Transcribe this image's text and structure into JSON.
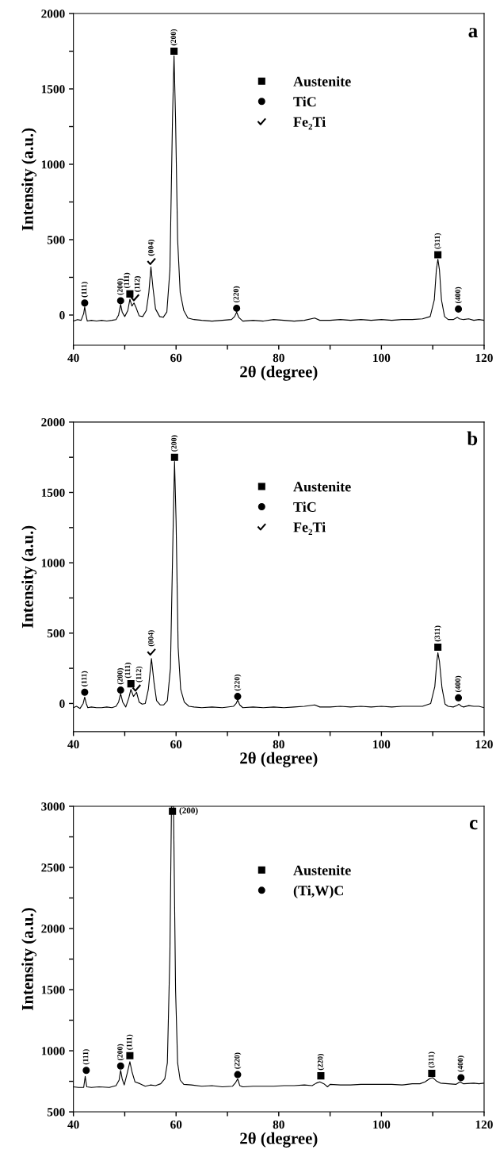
{
  "chart_data": [
    {
      "type": "line",
      "ylabel": "Intensity (a.u.)",
      "xlabel": "2θ (degree)",
      "xlim": [
        40,
        120
      ],
      "ylim": [
        -200,
        2000
      ],
      "xticks": [
        40,
        {
          "value": 50,
          "label": null
        },
        60,
        {
          "value": 70,
          "label": null
        },
        80,
        {
          "value": 90,
          "label": null
        },
        100,
        {
          "value": 110,
          "label": null
        },
        120
      ],
      "yticks": [
        0,
        {
          "value": 250,
          "label": null
        },
        500,
        {
          "value": 750,
          "label": null
        },
        1000,
        {
          "value": 1250,
          "label": null
        },
        1500,
        {
          "value": 1750,
          "label": null
        },
        2000
      ],
      "grid": false,
      "legend": "top",
      "series": [
        {
          "color": "#000000",
          "x": [
            40,
            40.8,
            41.5,
            42.0,
            42.2,
            42.4,
            42.7,
            43.5,
            44.5,
            45.5,
            46.5,
            47.5,
            48.3,
            48.8,
            49.2,
            49.5,
            50.0,
            50.6,
            51.0,
            51.4,
            51.8,
            52.2,
            52.8,
            53.5,
            54.2,
            54.7,
            55.1,
            55.5,
            56.0,
            56.8,
            57.5,
            58.2,
            58.8,
            59.3,
            59.6,
            59.9,
            60.3,
            60.8,
            61.5,
            62.3,
            63.5,
            65,
            67,
            69,
            70.8,
            71.4,
            71.8,
            72.2,
            73,
            75,
            77,
            79,
            81,
            83,
            85,
            87,
            88,
            90,
            92,
            94,
            96,
            98,
            100,
            102,
            104,
            106,
            108,
            109.5,
            110.3,
            110.7,
            111.0,
            111.3,
            111.7,
            112.3,
            113,
            114,
            114.8,
            115.2,
            116,
            117,
            118,
            119,
            120
          ],
          "values": [
            -40,
            -30,
            -35,
            10,
            55,
            10,
            -40,
            -35,
            -40,
            -35,
            -40,
            -35,
            -30,
            0,
            70,
            20,
            -10,
            30,
            105,
            60,
            80,
            50,
            -5,
            -10,
            30,
            150,
            320,
            180,
            40,
            -10,
            -15,
            20,
            300,
            1300,
            1720,
            1300,
            500,
            150,
            30,
            -20,
            -30,
            -35,
            -40,
            -35,
            -30,
            -10,
            20,
            -15,
            -40,
            -35,
            -40,
            -30,
            -35,
            -40,
            -35,
            -20,
            -35,
            -35,
            -30,
            -35,
            -30,
            -35,
            -30,
            -35,
            -30,
            -30,
            -25,
            -10,
            100,
            300,
            370,
            300,
            100,
            -10,
            -30,
            -30,
            -15,
            -25,
            -30,
            -25,
            -35,
            -30,
            -35
          ]
        },
        {
          "type": "scatter",
          "name": "Austenite",
          "color": "#000000",
          "marker": "square",
          "x": [
            51,
            59.6,
            111
          ],
          "values": [
            140,
            1750,
            400
          ]
        },
        {
          "type": "scatter",
          "name": "TiC",
          "color": "#000000",
          "marker": "circle",
          "x": [
            42.2,
            49.2,
            71.8,
            115
          ],
          "values": [
            80,
            95,
            45,
            40
          ]
        },
        {
          "type": "scatter",
          "name": "Fe₂Ti",
          "color": "#000000",
          "marker": "cross",
          "x": [
            52,
            55.2
          ],
          "values": [
            115,
            355
          ]
        }
      ],
      "annotations": [
        "a",
        {
          "text": "(111)",
          "x": 42.2,
          "y": 80
        },
        {
          "text": "(200)",
          "x": 49.2,
          "y": 95
        },
        {
          "text": "(111)",
          "x": 51,
          "y": 140
        },
        {
          "text": "(112)",
          "x": 52,
          "y": 115
        },
        {
          "text": "(004)",
          "x": 55.2,
          "y": 355
        },
        {
          "text": "(200)",
          "x": 59.6,
          "y": 1750
        },
        {
          "text": "(220)",
          "x": 71.8,
          "y": 45
        },
        {
          "text": "(311)",
          "x": 111,
          "y": 400
        },
        {
          "text": "(400)",
          "x": 115,
          "y": 40
        }
      ]
    },
    {
      "type": "line",
      "ylabel": "Intensity (a.u.)",
      "xlabel": "2θ (degree)",
      "xlim": [
        40,
        120
      ],
      "ylim": [
        -200,
        2000
      ],
      "xticks": [
        40,
        {
          "value": 50,
          "label": null
        },
        60,
        {
          "value": 70,
          "label": null
        },
        80,
        {
          "value": 90,
          "label": null
        },
        100,
        {
          "value": 110,
          "label": null
        },
        120
      ],
      "yticks": [
        0,
        {
          "value": 250,
          "label": null
        },
        500,
        {
          "value": 750,
          "label": null
        },
        1000,
        {
          "value": 1250,
          "label": null
        },
        1500,
        {
          "value": 1750,
          "label": null
        },
        2000
      ],
      "grid": false,
      "legend": "top",
      "series": [
        {
          "color": "#000000",
          "x": [
            40,
            40.6,
            41.3,
            41.9,
            42.2,
            42.5,
            42.8,
            43.5,
            44.5,
            45.5,
            46.5,
            47.5,
            48.3,
            48.8,
            49.2,
            49.6,
            50.2,
            50.8,
            51.2,
            51.7,
            52.3,
            52.8,
            53.4,
            54.0,
            54.6,
            55.2,
            55.7,
            56.2,
            56.9,
            57.6,
            58.3,
            58.9,
            59.4,
            59.7,
            60.0,
            60.4,
            60.9,
            61.6,
            62.5,
            63.5,
            65,
            67,
            69,
            71.2,
            71.7,
            72.0,
            72.4,
            73,
            75,
            77,
            79,
            81,
            83,
            85,
            87,
            88,
            90,
            92,
            94,
            96,
            98,
            100,
            102,
            104,
            106,
            108,
            109.6,
            110.4,
            110.8,
            111.0,
            111.3,
            111.8,
            112.4,
            113,
            114,
            114.7,
            115.1,
            115.6,
            116,
            117,
            118,
            119,
            120
          ],
          "values": [
            -30,
            -20,
            -35,
            0,
            45,
            0,
            -30,
            -25,
            -30,
            -30,
            -25,
            -30,
            -20,
            10,
            70,
            10,
            -25,
            40,
            100,
            50,
            80,
            10,
            -5,
            0,
            100,
            320,
            150,
            20,
            -10,
            -10,
            20,
            250,
            1200,
            1720,
            1300,
            400,
            100,
            10,
            -20,
            -25,
            -30,
            -25,
            -30,
            -20,
            0,
            25,
            -10,
            -30,
            -25,
            -30,
            -25,
            -30,
            -25,
            -20,
            -10,
            -25,
            -25,
            -20,
            -25,
            -20,
            -25,
            -20,
            -25,
            -20,
            -20,
            -20,
            0,
            120,
            300,
            360,
            300,
            110,
            -5,
            -20,
            -25,
            -15,
            -5,
            -20,
            -25,
            -15,
            -20,
            -20,
            -30
          ]
        },
        {
          "type": "scatter",
          "name": "Austenite",
          "color": "#000000",
          "marker": "square",
          "x": [
            51.2,
            59.7,
            111
          ],
          "values": [
            140,
            1750,
            400
          ]
        },
        {
          "type": "scatter",
          "name": "TiC",
          "color": "#000000",
          "marker": "circle",
          "x": [
            42.2,
            49.2,
            72,
            115
          ],
          "values": [
            80,
            95,
            50,
            40
          ]
        },
        {
          "type": "scatter",
          "name": "Fe₂Ti",
          "color": "#000000",
          "marker": "cross",
          "x": [
            52.3,
            55.2
          ],
          "values": [
            110,
            365
          ]
        }
      ],
      "annotations": [
        "b",
        {
          "text": "(111)",
          "x": 42.2,
          "y": 80
        },
        {
          "text": "(200)",
          "x": 49.2,
          "y": 95
        },
        {
          "text": "(111)",
          "x": 51.2,
          "y": 140
        },
        {
          "text": "(112)",
          "x": 52.3,
          "y": 110
        },
        {
          "text": "(004)",
          "x": 55.2,
          "y": 365
        },
        {
          "text": "(200)",
          "x": 59.7,
          "y": 1750
        },
        {
          "text": "(220)",
          "x": 72,
          "y": 50
        },
        {
          "text": "(311)",
          "x": 111,
          "y": 400
        },
        {
          "text": "(400)",
          "x": 115,
          "y": 40
        }
      ]
    },
    {
      "type": "line",
      "ylabel": "Intensity (a.u.)",
      "xlabel": "2θ (degree)",
      "xlim": [
        40,
        120
      ],
      "ylim": [
        500,
        3000
      ],
      "xticks": [
        40,
        {
          "value": 50,
          "label": null
        },
        60,
        {
          "value": 70,
          "label": null
        },
        80,
        {
          "value": 90,
          "label": null
        },
        100,
        {
          "value": 110,
          "label": null
        },
        120
      ],
      "yticks": [
        500,
        {
          "value": 750,
          "label": null
        },
        1000,
        {
          "value": 1250,
          "label": null
        },
        1500,
        {
          "value": 1750,
          "label": null
        },
        2000,
        {
          "value": 2250,
          "label": null
        },
        2500,
        {
          "value": 2750,
          "label": null
        },
        3000
      ],
      "grid": false,
      "legend": "top",
      "series": [
        {
          "color": "#000000",
          "x": [
            40,
            41,
            42,
            42.3,
            42.6,
            43.5,
            45,
            47,
            48.3,
            48.9,
            49.2,
            49.5,
            49.9,
            50.5,
            51,
            51.4,
            52,
            53,
            54,
            55,
            56,
            57,
            57.8,
            58.3,
            58.8,
            59.1,
            59.5,
            59.9,
            60.3,
            60.8,
            61.5,
            63,
            65,
            67,
            69,
            71,
            71.6,
            72,
            72.4,
            73,
            75,
            77,
            79,
            81,
            83,
            85,
            86.5,
            87.3,
            88,
            88.8,
            89.5,
            90,
            92,
            94,
            96,
            98,
            100,
            102,
            104,
            106,
            107.5,
            108.5,
            109.5,
            110,
            110.8,
            111.5,
            113,
            114.5,
            115.3,
            116,
            118,
            119,
            120
          ],
          "values": [
            705,
            700,
            700,
            790,
            705,
            700,
            705,
            700,
            715,
            760,
            840,
            770,
            720,
            820,
            910,
            830,
            745,
            730,
            710,
            720,
            715,
            730,
            770,
            900,
            1800,
            3000,
            3000,
            1500,
            900,
            760,
            725,
            720,
            710,
            715,
            705,
            710,
            740,
            770,
            715,
            705,
            710,
            710,
            710,
            715,
            715,
            720,
            715,
            735,
            745,
            730,
            705,
            725,
            720,
            720,
            725,
            725,
            725,
            725,
            720,
            730,
            730,
            745,
            775,
            780,
            750,
            735,
            730,
            725,
            745,
            730,
            735,
            730,
            735
          ]
        },
        {
          "type": "scatter",
          "name": "Austenite",
          "color": "#000000",
          "marker": "square",
          "x": [
            51,
            59.3,
            88.2,
            109.8
          ],
          "values": [
            960,
            2960,
            795,
            815
          ]
        },
        {
          "type": "scatter",
          "name": "(Ti,W)C",
          "color": "#000000",
          "marker": "circle",
          "x": [
            42.5,
            49.2,
            72,
            115.5
          ],
          "values": [
            840,
            875,
            805,
            780
          ]
        }
      ],
      "annotations": [
        "c",
        {
          "text": "(111)",
          "x": 42.5,
          "y": 840
        },
        {
          "text": "(200)",
          "x": 49.2,
          "y": 875
        },
        {
          "text": "(111)",
          "x": 51,
          "y": 960
        },
        {
          "text": "(200)",
          "x": 59.3,
          "y": 2960
        },
        {
          "text": "(220)",
          "x": 72,
          "y": 805
        },
        {
          "text": "(220)",
          "x": 88.2,
          "y": 795
        },
        {
          "text": "(311)",
          "x": 109.8,
          "y": 815
        },
        {
          "text": "(400)",
          "x": 115.5,
          "y": 780
        }
      ]
    }
  ]
}
